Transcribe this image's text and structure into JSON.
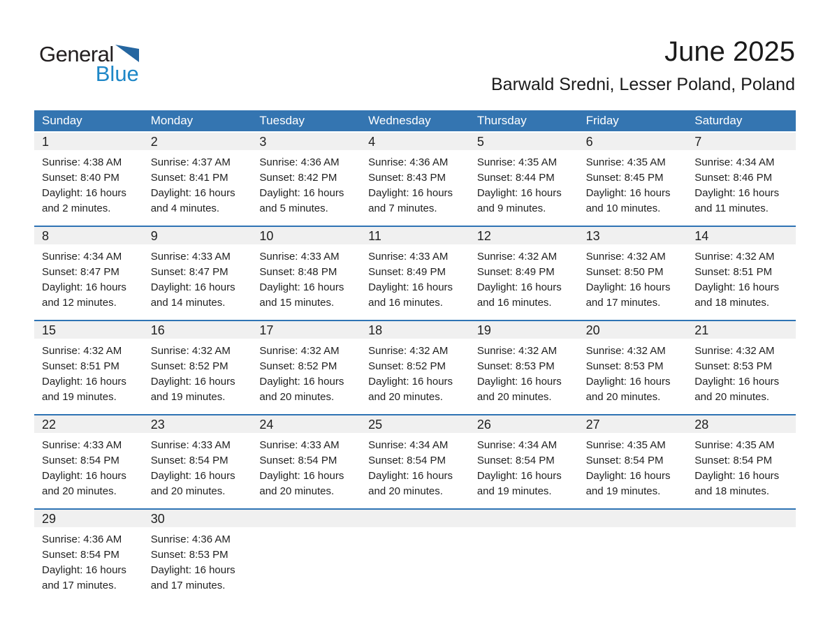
{
  "logo": {
    "part1": "General",
    "part2": "Blue"
  },
  "header": {
    "title": "June 2025",
    "location": "Barwald Sredni, Lesser Poland, Poland"
  },
  "colors": {
    "header_bg": "#3475b1",
    "week_border": "#2e73b4",
    "day_band_bg": "#f0f0f0",
    "logo_blue": "#1e87c7",
    "logo_triangle": "#2566a0",
    "text": "#1f1f1f",
    "header_text": "#ffffff"
  },
  "calendar": {
    "weekdays": [
      "Sunday",
      "Monday",
      "Tuesday",
      "Wednesday",
      "Thursday",
      "Friday",
      "Saturday"
    ],
    "labels": {
      "sunrise": "Sunrise:",
      "sunset": "Sunset:",
      "daylight": "Daylight:"
    },
    "weeks": [
      [
        {
          "day": "1",
          "sunrise": "4:38 AM",
          "sunset": "8:40 PM",
          "daylight": "16 hours and 2 minutes."
        },
        {
          "day": "2",
          "sunrise": "4:37 AM",
          "sunset": "8:41 PM",
          "daylight": "16 hours and 4 minutes."
        },
        {
          "day": "3",
          "sunrise": "4:36 AM",
          "sunset": "8:42 PM",
          "daylight": "16 hours and 5 minutes."
        },
        {
          "day": "4",
          "sunrise": "4:36 AM",
          "sunset": "8:43 PM",
          "daylight": "16 hours and 7 minutes."
        },
        {
          "day": "5",
          "sunrise": "4:35 AM",
          "sunset": "8:44 PM",
          "daylight": "16 hours and 9 minutes."
        },
        {
          "day": "6",
          "sunrise": "4:35 AM",
          "sunset": "8:45 PM",
          "daylight": "16 hours and 10 minutes."
        },
        {
          "day": "7",
          "sunrise": "4:34 AM",
          "sunset": "8:46 PM",
          "daylight": "16 hours and 11 minutes."
        }
      ],
      [
        {
          "day": "8",
          "sunrise": "4:34 AM",
          "sunset": "8:47 PM",
          "daylight": "16 hours and 12 minutes."
        },
        {
          "day": "9",
          "sunrise": "4:33 AM",
          "sunset": "8:47 PM",
          "daylight": "16 hours and 14 minutes."
        },
        {
          "day": "10",
          "sunrise": "4:33 AM",
          "sunset": "8:48 PM",
          "daylight": "16 hours and 15 minutes."
        },
        {
          "day": "11",
          "sunrise": "4:33 AM",
          "sunset": "8:49 PM",
          "daylight": "16 hours and 16 minutes."
        },
        {
          "day": "12",
          "sunrise": "4:32 AM",
          "sunset": "8:49 PM",
          "daylight": "16 hours and 16 minutes."
        },
        {
          "day": "13",
          "sunrise": "4:32 AM",
          "sunset": "8:50 PM",
          "daylight": "16 hours and 17 minutes."
        },
        {
          "day": "14",
          "sunrise": "4:32 AM",
          "sunset": "8:51 PM",
          "daylight": "16 hours and 18 minutes."
        }
      ],
      [
        {
          "day": "15",
          "sunrise": "4:32 AM",
          "sunset": "8:51 PM",
          "daylight": "16 hours and 19 minutes."
        },
        {
          "day": "16",
          "sunrise": "4:32 AM",
          "sunset": "8:52 PM",
          "daylight": "16 hours and 19 minutes."
        },
        {
          "day": "17",
          "sunrise": "4:32 AM",
          "sunset": "8:52 PM",
          "daylight": "16 hours and 20 minutes."
        },
        {
          "day": "18",
          "sunrise": "4:32 AM",
          "sunset": "8:52 PM",
          "daylight": "16 hours and 20 minutes."
        },
        {
          "day": "19",
          "sunrise": "4:32 AM",
          "sunset": "8:53 PM",
          "daylight": "16 hours and 20 minutes."
        },
        {
          "day": "20",
          "sunrise": "4:32 AM",
          "sunset": "8:53 PM",
          "daylight": "16 hours and 20 minutes."
        },
        {
          "day": "21",
          "sunrise": "4:32 AM",
          "sunset": "8:53 PM",
          "daylight": "16 hours and 20 minutes."
        }
      ],
      [
        {
          "day": "22",
          "sunrise": "4:33 AM",
          "sunset": "8:54 PM",
          "daylight": "16 hours and 20 minutes."
        },
        {
          "day": "23",
          "sunrise": "4:33 AM",
          "sunset": "8:54 PM",
          "daylight": "16 hours and 20 minutes."
        },
        {
          "day": "24",
          "sunrise": "4:33 AM",
          "sunset": "8:54 PM",
          "daylight": "16 hours and 20 minutes."
        },
        {
          "day": "25",
          "sunrise": "4:34 AM",
          "sunset": "8:54 PM",
          "daylight": "16 hours and 20 minutes."
        },
        {
          "day": "26",
          "sunrise": "4:34 AM",
          "sunset": "8:54 PM",
          "daylight": "16 hours and 19 minutes."
        },
        {
          "day": "27",
          "sunrise": "4:35 AM",
          "sunset": "8:54 PM",
          "daylight": "16 hours and 19 minutes."
        },
        {
          "day": "28",
          "sunrise": "4:35 AM",
          "sunset": "8:54 PM",
          "daylight": "16 hours and 18 minutes."
        }
      ],
      [
        {
          "day": "29",
          "sunrise": "4:36 AM",
          "sunset": "8:54 PM",
          "daylight": "16 hours and 17 minutes."
        },
        {
          "day": "30",
          "sunrise": "4:36 AM",
          "sunset": "8:53 PM",
          "daylight": "16 hours and 17 minutes."
        },
        null,
        null,
        null,
        null,
        null
      ]
    ]
  }
}
